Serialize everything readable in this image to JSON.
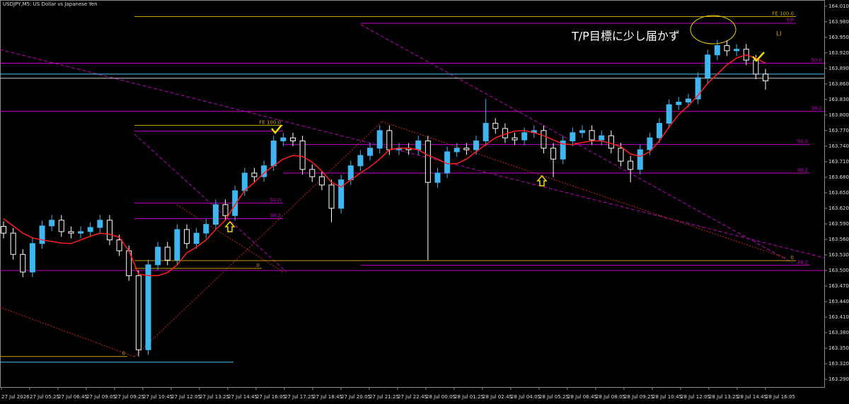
{
  "chart_data": {
    "type": "candlestick",
    "title": "USDJPY,M5: US Dollar vs Japanese Yen",
    "annotation": "T/P目標に少し届かず",
    "marker_text": "LI",
    "up_color": "#3fb6f0",
    "down_color": "#ffffff",
    "ylim": [
      163.275,
      164.022
    ],
    "yticks": [
      {
        "value": 164.01,
        "label": "164.010"
      },
      {
        "value": 163.98,
        "label": "163.980"
      },
      {
        "value": 163.95,
        "label": "163.950"
      },
      {
        "value": 163.92,
        "label": "163.920"
      },
      {
        "value": 163.89,
        "label": "163.890"
      },
      {
        "value": 163.86,
        "label": "163.860"
      },
      {
        "value": 163.83,
        "label": "163.830"
      },
      {
        "value": 163.8,
        "label": "163.800"
      },
      {
        "value": 163.77,
        "label": "163.770"
      },
      {
        "value": 163.74,
        "label": "163.740"
      },
      {
        "value": 163.71,
        "label": "163.710"
      },
      {
        "value": 163.68,
        "label": "163.680"
      },
      {
        "value": 163.65,
        "label": "163.650"
      },
      {
        "value": 163.62,
        "label": "163.620"
      },
      {
        "value": 163.59,
        "label": "163.590"
      },
      {
        "value": 163.56,
        "label": "163.560"
      },
      {
        "value": 163.53,
        "label": "163.530"
      },
      {
        "value": 163.5,
        "label": "163.500"
      },
      {
        "value": 163.47,
        "label": "163.470"
      },
      {
        "value": 163.44,
        "label": "163.440"
      },
      {
        "value": 163.41,
        "label": "163.410"
      },
      {
        "value": 163.38,
        "label": "163.380"
      },
      {
        "value": 163.35,
        "label": "163.350"
      },
      {
        "value": 163.32,
        "label": "163.320"
      },
      {
        "value": 163.29,
        "label": "163.290"
      }
    ],
    "xtick_labels": [
      "27 Jul 2026",
      "27 Jul 05:25",
      "27 Jul 06:45",
      "27 Jul 09:05",
      "27 Jul 09:25",
      "27 Jul 10:45",
      "27 Jul 12:05",
      "27 Jul 13:25",
      "27 Jul 14:45",
      "27 Jul 16:05",
      "27 Jul 17:25",
      "27 Jul 18:45",
      "27 Jul 20:05",
      "27 Jul 21:25",
      "27 Jul 22:45",
      "28 Jul 00:05",
      "28 Jul 01:25",
      "28 Jul 02:45",
      "28 Jul 04:05",
      "28 Jul 05:25",
      "28 Jul 06:45",
      "28 Jul 08:05",
      "28 Jul 09:25",
      "28 Jul 10:45",
      "28 Jul 12:05",
      "28 Jul 13:25",
      "28 Jul 14:45",
      "28 Jul 16:05"
    ],
    "open": [
      163.585,
      163.572,
      163.531,
      163.497,
      163.552,
      163.586,
      163.597,
      163.575,
      163.572,
      163.575,
      163.583,
      163.597,
      163.559,
      163.538,
      163.49,
      163.347,
      163.511,
      163.545,
      163.52,
      163.579,
      163.552,
      163.572,
      163.589,
      163.627,
      163.606,
      163.654,
      163.688,
      163.681,
      163.702,
      163.75,
      163.756,
      163.75,
      163.695,
      163.681,
      163.665,
      163.62,
      163.675,
      163.702,
      163.722,
      163.736,
      163.77,
      163.733,
      163.736,
      163.733,
      163.75,
      163.67,
      163.688,
      163.729,
      163.736,
      163.733,
      163.75,
      163.784,
      163.774,
      163.756,
      163.752,
      163.766,
      163.77,
      163.736,
      163.715,
      163.75,
      163.766,
      163.77,
      163.752,
      163.76,
      163.736,
      163.711,
      163.695,
      163.733,
      163.756,
      163.784,
      163.82,
      163.825,
      163.831,
      163.872,
      163.916,
      163.934,
      163.924,
      163.927,
      163.906,
      163.879
    ],
    "high": [
      163.595,
      163.582,
      163.541,
      163.562,
      163.596,
      163.607,
      163.607,
      163.585,
      163.585,
      163.593,
      163.607,
      163.607,
      163.569,
      163.548,
      163.5,
      163.521,
      163.555,
      163.555,
      163.589,
      163.589,
      163.582,
      163.599,
      163.637,
      163.637,
      163.664,
      163.698,
      163.698,
      163.712,
      163.76,
      163.766,
      163.766,
      163.76,
      163.705,
      163.691,
      163.675,
      163.685,
      163.712,
      163.732,
      163.746,
      163.78,
      163.78,
      163.746,
      163.746,
      163.76,
      163.76,
      163.698,
      163.739,
      163.746,
      163.746,
      163.76,
      163.831,
      163.794,
      163.784,
      163.766,
      163.776,
      163.78,
      163.78,
      163.746,
      163.76,
      163.776,
      163.78,
      163.78,
      163.77,
      163.77,
      163.746,
      163.721,
      163.743,
      163.766,
      163.794,
      163.83,
      163.835,
      163.841,
      163.882,
      163.926,
      163.945,
      163.944,
      163.937,
      163.937,
      163.916,
      163.889
    ],
    "low": [
      163.562,
      163.521,
      163.487,
      163.487,
      163.542,
      163.576,
      163.565,
      163.562,
      163.562,
      163.565,
      163.573,
      163.549,
      163.528,
      163.48,
      163.334,
      163.337,
      163.501,
      163.51,
      163.51,
      163.542,
      163.542,
      163.562,
      163.579,
      163.596,
      163.596,
      163.644,
      163.671,
      163.671,
      163.692,
      163.74,
      163.74,
      163.685,
      163.671,
      163.655,
      163.593,
      163.61,
      163.665,
      163.692,
      163.712,
      163.726,
      163.723,
      163.723,
      163.723,
      163.723,
      163.52,
      163.66,
      163.678,
      163.719,
      163.723,
      163.723,
      163.74,
      163.764,
      163.746,
      163.742,
      163.742,
      163.756,
      163.726,
      163.68,
      163.705,
      163.74,
      163.756,
      163.742,
      163.742,
      163.726,
      163.701,
      163.67,
      163.685,
      163.723,
      163.746,
      163.774,
      163.81,
      163.815,
      163.821,
      163.862,
      163.906,
      163.914,
      163.914,
      163.896,
      163.869,
      163.849
    ],
    "close": [
      163.572,
      163.531,
      163.497,
      163.552,
      163.586,
      163.597,
      163.575,
      163.572,
      163.575,
      163.583,
      163.597,
      163.559,
      163.538,
      163.49,
      163.347,
      163.511,
      163.545,
      163.52,
      163.579,
      163.552,
      163.572,
      163.589,
      163.627,
      163.606,
      163.654,
      163.688,
      163.681,
      163.702,
      163.75,
      163.756,
      163.75,
      163.695,
      163.681,
      163.665,
      163.62,
      163.675,
      163.702,
      163.722,
      163.736,
      163.77,
      163.733,
      163.736,
      163.733,
      163.75,
      163.67,
      163.688,
      163.729,
      163.736,
      163.733,
      163.75,
      163.784,
      163.774,
      163.756,
      163.752,
      163.766,
      163.77,
      163.736,
      163.715,
      163.75,
      163.766,
      163.77,
      163.752,
      163.76,
      163.736,
      163.711,
      163.695,
      163.733,
      163.756,
      163.784,
      163.82,
      163.825,
      163.831,
      163.872,
      163.916,
      163.934,
      163.924,
      163.927,
      163.906,
      163.879,
      163.866
    ],
    "ma": {
      "color": "#ff2020",
      "values": [
        163.6,
        163.586,
        163.572,
        163.563,
        163.559,
        163.556,
        163.553,
        163.552,
        163.559,
        163.566,
        163.572,
        163.57,
        163.564,
        163.538,
        163.493,
        163.49,
        163.49,
        163.496,
        163.511,
        163.534,
        163.545,
        163.559,
        163.579,
        163.597,
        163.627,
        163.654,
        163.67,
        163.688,
        163.702,
        163.715,
        163.722,
        163.72,
        163.709,
        163.692,
        163.67,
        163.661,
        163.675,
        163.688,
        163.7,
        163.715,
        163.733,
        163.736,
        163.736,
        163.733,
        163.722,
        163.715,
        163.706,
        163.706,
        163.715,
        163.729,
        163.743,
        163.756,
        163.763,
        163.769,
        163.77,
        163.766,
        163.76,
        163.752,
        163.744,
        163.743,
        163.747,
        163.75,
        163.75,
        163.745,
        163.739,
        163.725,
        163.72,
        163.729,
        163.75,
        163.777,
        163.801,
        163.818,
        163.838,
        163.861,
        163.879,
        163.897,
        163.91,
        163.916,
        163.91,
        163.9
      ]
    },
    "levels": [
      {
        "value": 163.99,
        "color": "#c8a000",
        "label": "FE 100.0"
      },
      {
        "value": 163.977,
        "color": "#c000c0",
        "label": "T/P"
      },
      {
        "value": 163.9,
        "color": "#c000c0",
        "label": "50.0"
      },
      {
        "value": 163.879,
        "color": "#4fc3f7"
      },
      {
        "value": 163.871,
        "color": "#cccccc"
      },
      {
        "value": 163.807,
        "color": "#c000c0",
        "label": "38.2"
      },
      {
        "value": 163.78,
        "color": "#c8a000",
        "label": "FE 100.0"
      },
      {
        "value": 163.769,
        "color": "#c000c0"
      },
      {
        "value": 163.743,
        "color": "#c000c0",
        "label": "50.0"
      },
      {
        "value": 163.688,
        "color": "#c000c0",
        "label": "38.2"
      },
      {
        "value": 163.63,
        "color": "#c000c0",
        "label": "50.0"
      },
      {
        "value": 163.6,
        "color": "#c000c0",
        "label": "38.2"
      },
      {
        "value": 163.519,
        "color": "#c8a000",
        "label": "0"
      },
      {
        "value": 163.51,
        "color": "#c000c0",
        "label": "38.2"
      },
      {
        "value": 163.5,
        "color": "#c000c0"
      },
      {
        "value": 163.504,
        "color": "#c8a000",
        "label": "0"
      },
      {
        "value": 163.334,
        "color": "#c8a000",
        "label": "0"
      },
      {
        "value": 163.323,
        "color": "#4fc3f7"
      }
    ]
  }
}
